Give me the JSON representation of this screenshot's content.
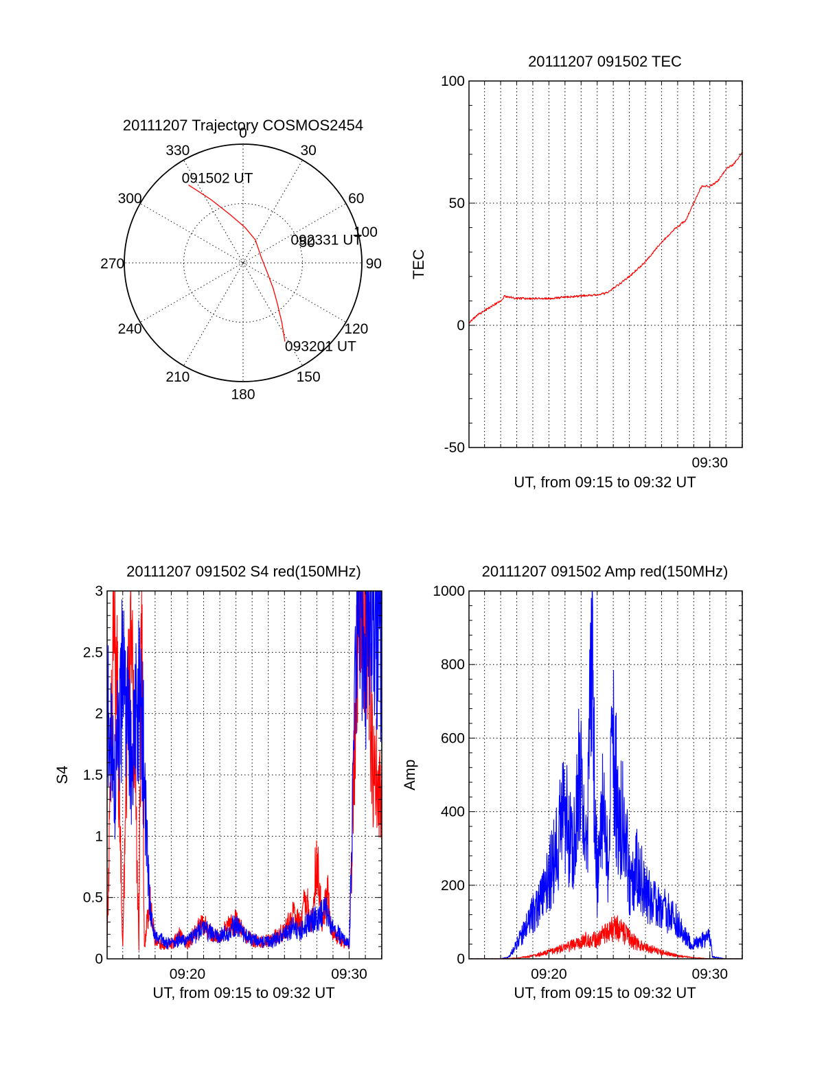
{
  "chart_data": [
    {
      "type": "polar",
      "title": "20111207 Trajectory COSMOS2454",
      "azimuth_labels": [
        "0",
        "30",
        "60",
        "90",
        "120",
        "150",
        "180",
        "210",
        "240",
        "270",
        "300",
        "330"
      ],
      "radius_labels": [
        "50",
        "100"
      ],
      "series": [
        {
          "color": "#ff0000",
          "points": [
            {
              "az": 325,
              "r": 80
            },
            {
              "az": 333,
              "r": 60
            },
            {
              "az": 345,
              "r": 42
            },
            {
              "az": 3,
              "r": 30
            },
            {
              "az": 28,
              "r": 22
            },
            {
              "az": 72,
              "r": 16
            },
            {
              "az": 112,
              "r": 22
            },
            {
              "az": 130,
              "r": 33
            },
            {
              "az": 140,
              "r": 45
            },
            {
              "az": 147,
              "r": 60
            },
            {
              "az": 152,
              "r": 75
            }
          ]
        }
      ],
      "annotations": [
        {
          "text": "091502 UT",
          "az": 325,
          "r": 80
        },
        {
          "text": "092331 UT",
          "az": 72,
          "r": 16
        },
        {
          "text": "093201 UT",
          "az": 152,
          "r": 75
        }
      ]
    },
    {
      "type": "line",
      "title": "20111207 091502 TEC",
      "xlabel": "UT, from 09:15 to 09:32 UT",
      "ylabel": "TEC",
      "xlim": [
        "09:15:02",
        "09:32:01"
      ],
      "ylim": [
        -50,
        100
      ],
      "xticks": [
        "09:30"
      ],
      "yticks": [
        -50,
        0,
        50,
        100
      ],
      "grid": true,
      "series": [
        {
          "color": "#ff0000",
          "x": [
            "09:15:02",
            "09:15:30",
            "09:16:00",
            "09:16:30",
            "09:17:00",
            "09:17:15",
            "09:18:00",
            "09:19:00",
            "09:20:00",
            "09:21:00",
            "09:22:00",
            "09:23:00",
            "09:23:30",
            "09:24:00",
            "09:25:00",
            "09:26:00",
            "09:27:00",
            "09:27:45",
            "09:28:30",
            "09:29:00",
            "09:29:30",
            "09:30:00",
            "09:30:30",
            "09:31:00",
            "09:31:30",
            "09:32:01"
          ],
          "y": [
            1,
            4,
            6,
            8,
            10,
            12,
            11,
            11,
            11,
            11.5,
            12,
            12.5,
            13,
            15,
            20,
            26,
            34,
            39,
            43,
            50,
            57,
            57,
            59,
            64,
            66,
            71
          ]
        }
      ]
    },
    {
      "type": "line",
      "title": "20111207 091502 S4 red(150MHz)",
      "xlabel": "UT, from 09:15 to 09:32 UT",
      "ylabel": "S4",
      "xlim": [
        "09:15:02",
        "09:32:01"
      ],
      "ylim": [
        0,
        3
      ],
      "xticks": [
        "09:20",
        "09:30"
      ],
      "yticks": [
        0,
        0.5,
        1,
        1.5,
        2,
        2.5,
        3
      ],
      "grid": true,
      "series": [
        {
          "color": "#ff0000",
          "x": [
            "09:15:02",
            "09:15:30",
            "09:16:00",
            "09:16:30",
            "09:17:00",
            "09:17:10",
            "09:17:20",
            "09:17:40",
            "09:18:00",
            "09:18:30",
            "09:19:00",
            "09:19:30",
            "09:20:00",
            "09:20:30",
            "09:21:00",
            "09:21:30",
            "09:22:00",
            "09:22:30",
            "09:23:00",
            "09:23:30",
            "09:24:00",
            "09:24:30",
            "09:25:00",
            "09:25:30",
            "09:26:00",
            "09:26:30",
            "09:27:00",
            "09:27:20",
            "09:27:40",
            "09:28:00",
            "09:28:20",
            "09:28:40",
            "09:29:00",
            "09:29:30",
            "09:30:00",
            "09:30:30",
            "09:31:00",
            "09:31:30",
            "09:32:01"
          ],
          "y": [
            0.1,
            3,
            0.1,
            3,
            0.1,
            3,
            0.1,
            0.5,
            0.15,
            0.1,
            0.12,
            0.18,
            0.12,
            0.22,
            0.28,
            0.2,
            0.18,
            0.25,
            0.3,
            0.2,
            0.15,
            0.14,
            0.15,
            0.18,
            0.22,
            0.35,
            0.3,
            0.5,
            0.25,
            0.85,
            0.3,
            0.55,
            0.2,
            0.15,
            0.1,
            2.4,
            3,
            1.5,
            1.5
          ]
        },
        {
          "color": "#0000ff",
          "x": [
            "09:15:02",
            "09:15:30",
            "09:16:00",
            "09:16:30",
            "09:17:00",
            "09:17:15",
            "09:17:30",
            "09:17:45",
            "09:18:00",
            "09:18:30",
            "09:19:00",
            "09:19:30",
            "09:20:00",
            "09:20:30",
            "09:21:00",
            "09:21:30",
            "09:22:00",
            "09:22:30",
            "09:23:00",
            "09:23:30",
            "09:24:00",
            "09:24:30",
            "09:25:00",
            "09:25:30",
            "09:26:00",
            "09:26:30",
            "09:27:00",
            "09:27:30",
            "09:28:00",
            "09:28:30",
            "09:29:00",
            "09:29:30",
            "09:30:00",
            "09:30:15",
            "09:30:30",
            "09:31:00",
            "09:31:30",
            "09:32:01"
          ],
          "y": [
            2,
            1.4,
            2.3,
            1.6,
            2.1,
            1.8,
            0.9,
            0.3,
            0.2,
            0.15,
            0.12,
            0.16,
            0.14,
            0.2,
            0.25,
            0.2,
            0.18,
            0.22,
            0.28,
            0.2,
            0.16,
            0.14,
            0.13,
            0.16,
            0.2,
            0.25,
            0.22,
            0.3,
            0.32,
            0.4,
            0.25,
            0.18,
            0.12,
            1.5,
            3,
            2.6,
            2.9,
            2.5
          ]
        }
      ]
    },
    {
      "type": "line",
      "title": "20111207 091502 Amp red(150MHz)",
      "xlabel": "UT, from 09:15 to 09:32 UT",
      "ylabel": "Amp",
      "xlim": [
        "09:15:02",
        "09:32:01"
      ],
      "ylim": [
        0,
        1000
      ],
      "xticks": [
        "09:20",
        "09:30"
      ],
      "yticks": [
        0,
        200,
        400,
        600,
        800,
        1000
      ],
      "grid": true,
      "series": [
        {
          "color": "#0000ff",
          "x": [
            "09:15:02",
            "09:16:00",
            "09:17:00",
            "09:17:30",
            "09:18:00",
            "09:18:30",
            "09:19:00",
            "09:19:30",
            "09:20:00",
            "09:20:30",
            "09:21:00",
            "09:21:30",
            "09:22:00",
            "09:22:20",
            "09:22:40",
            "09:23:00",
            "09:23:20",
            "09:23:40",
            "09:24:00",
            "09:24:20",
            "09:24:40",
            "09:25:00",
            "09:25:30",
            "09:26:00",
            "09:26:30",
            "09:27:00",
            "09:27:30",
            "09:28:00",
            "09:28:30",
            "09:29:00",
            "09:29:30",
            "09:30:00",
            "09:30:10",
            "09:31:00",
            "09:32:01"
          ],
          "y": [
            0,
            0,
            0,
            5,
            40,
            80,
            120,
            150,
            220,
            300,
            400,
            300,
            550,
            250,
            800,
            200,
            400,
            250,
            600,
            350,
            420,
            200,
            250,
            180,
            150,
            140,
            120,
            100,
            60,
            40,
            50,
            60,
            5,
            0,
            0
          ]
        },
        {
          "color": "#ff0000",
          "x": [
            "09:15:02",
            "09:17:00",
            "09:18:00",
            "09:19:00",
            "09:20:00",
            "09:21:00",
            "09:22:00",
            "09:22:30",
            "09:23:00",
            "09:23:30",
            "09:24:00",
            "09:24:30",
            "09:25:00",
            "09:25:30",
            "09:26:00",
            "09:27:00",
            "09:28:00",
            "09:29:00",
            "09:30:00",
            "09:31:00",
            "09:32:01"
          ],
          "y": [
            0,
            0,
            2,
            8,
            18,
            30,
            45,
            55,
            50,
            70,
            85,
            80,
            55,
            40,
            30,
            18,
            8,
            3,
            0,
            0,
            0
          ]
        }
      ]
    }
  ]
}
